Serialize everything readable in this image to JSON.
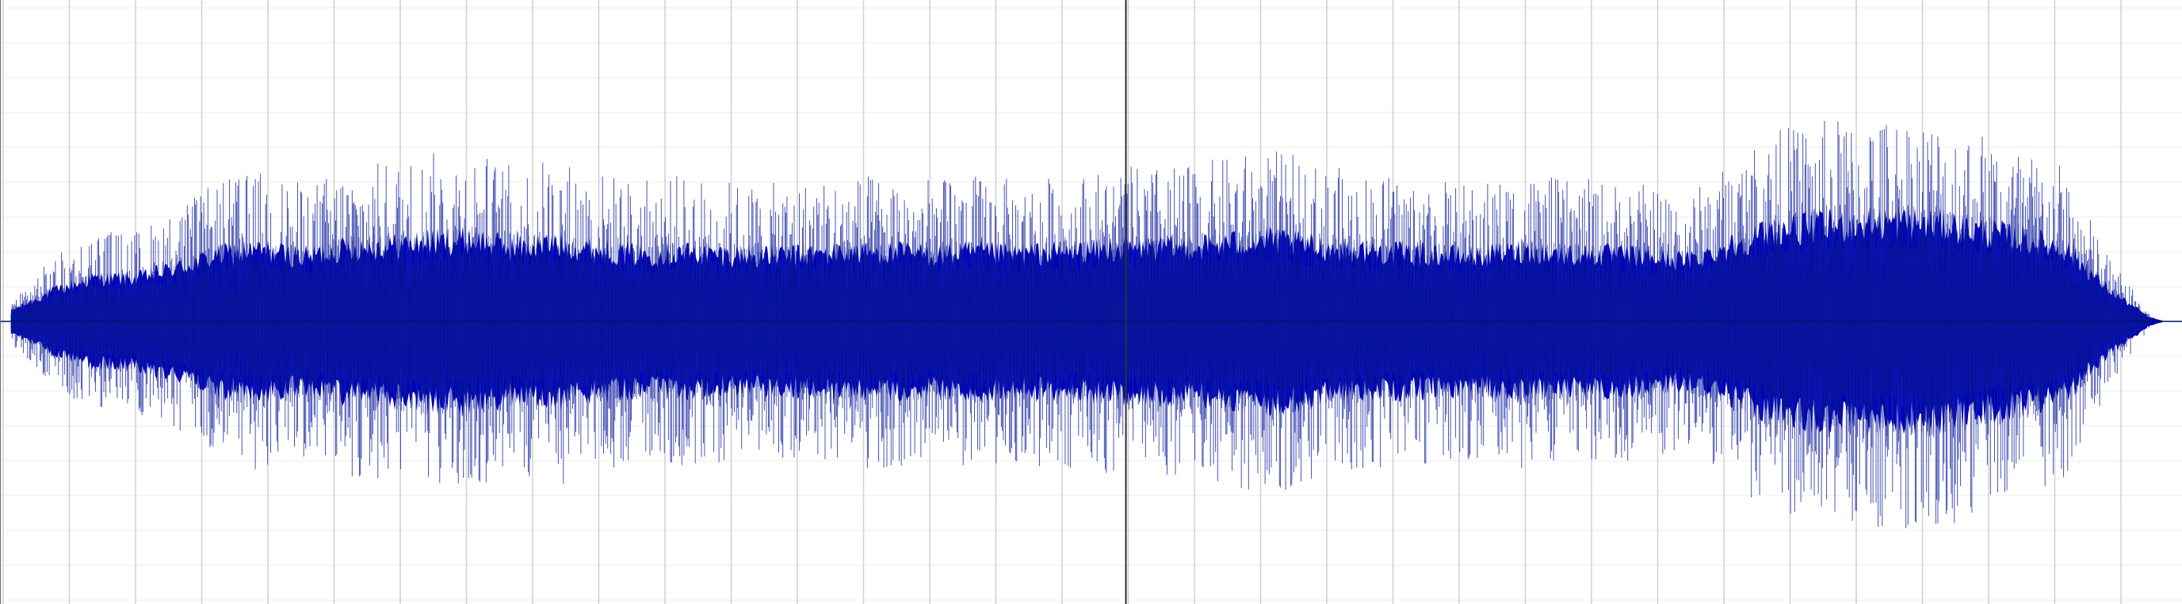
{
  "waveform": {
    "color_main": "#0000c0",
    "color_dark": "#001070",
    "color_trace": "#1020a0",
    "background": "#ffffff",
    "grid_color": "#d0d0d0",
    "grid_minor_color": "#ececec",
    "cursor_color": "#303030",
    "major_grid_count": 33,
    "minor_per_major": 4,
    "cursor_position": 0.516,
    "end_position": 0.985,
    "envelope": [
      0.05,
      0.14,
      0.2,
      0.2,
      0.25,
      0.31,
      0.33,
      0.3,
      0.34,
      0.35,
      0.37,
      0.38,
      0.34,
      0.36,
      0.33,
      0.31,
      0.32,
      0.31,
      0.3,
      0.31,
      0.32,
      0.32,
      0.31,
      0.32,
      0.31,
      0.32,
      0.33,
      0.34,
      0.34,
      0.36,
      0.38,
      0.35,
      0.33,
      0.32,
      0.31,
      0.3,
      0.33,
      0.31,
      0.31,
      0.3,
      0.28,
      0.35,
      0.42,
      0.44,
      0.45,
      0.46,
      0.45,
      0.42,
      0.38,
      0.34,
      0.15,
      0.02
    ]
  }
}
